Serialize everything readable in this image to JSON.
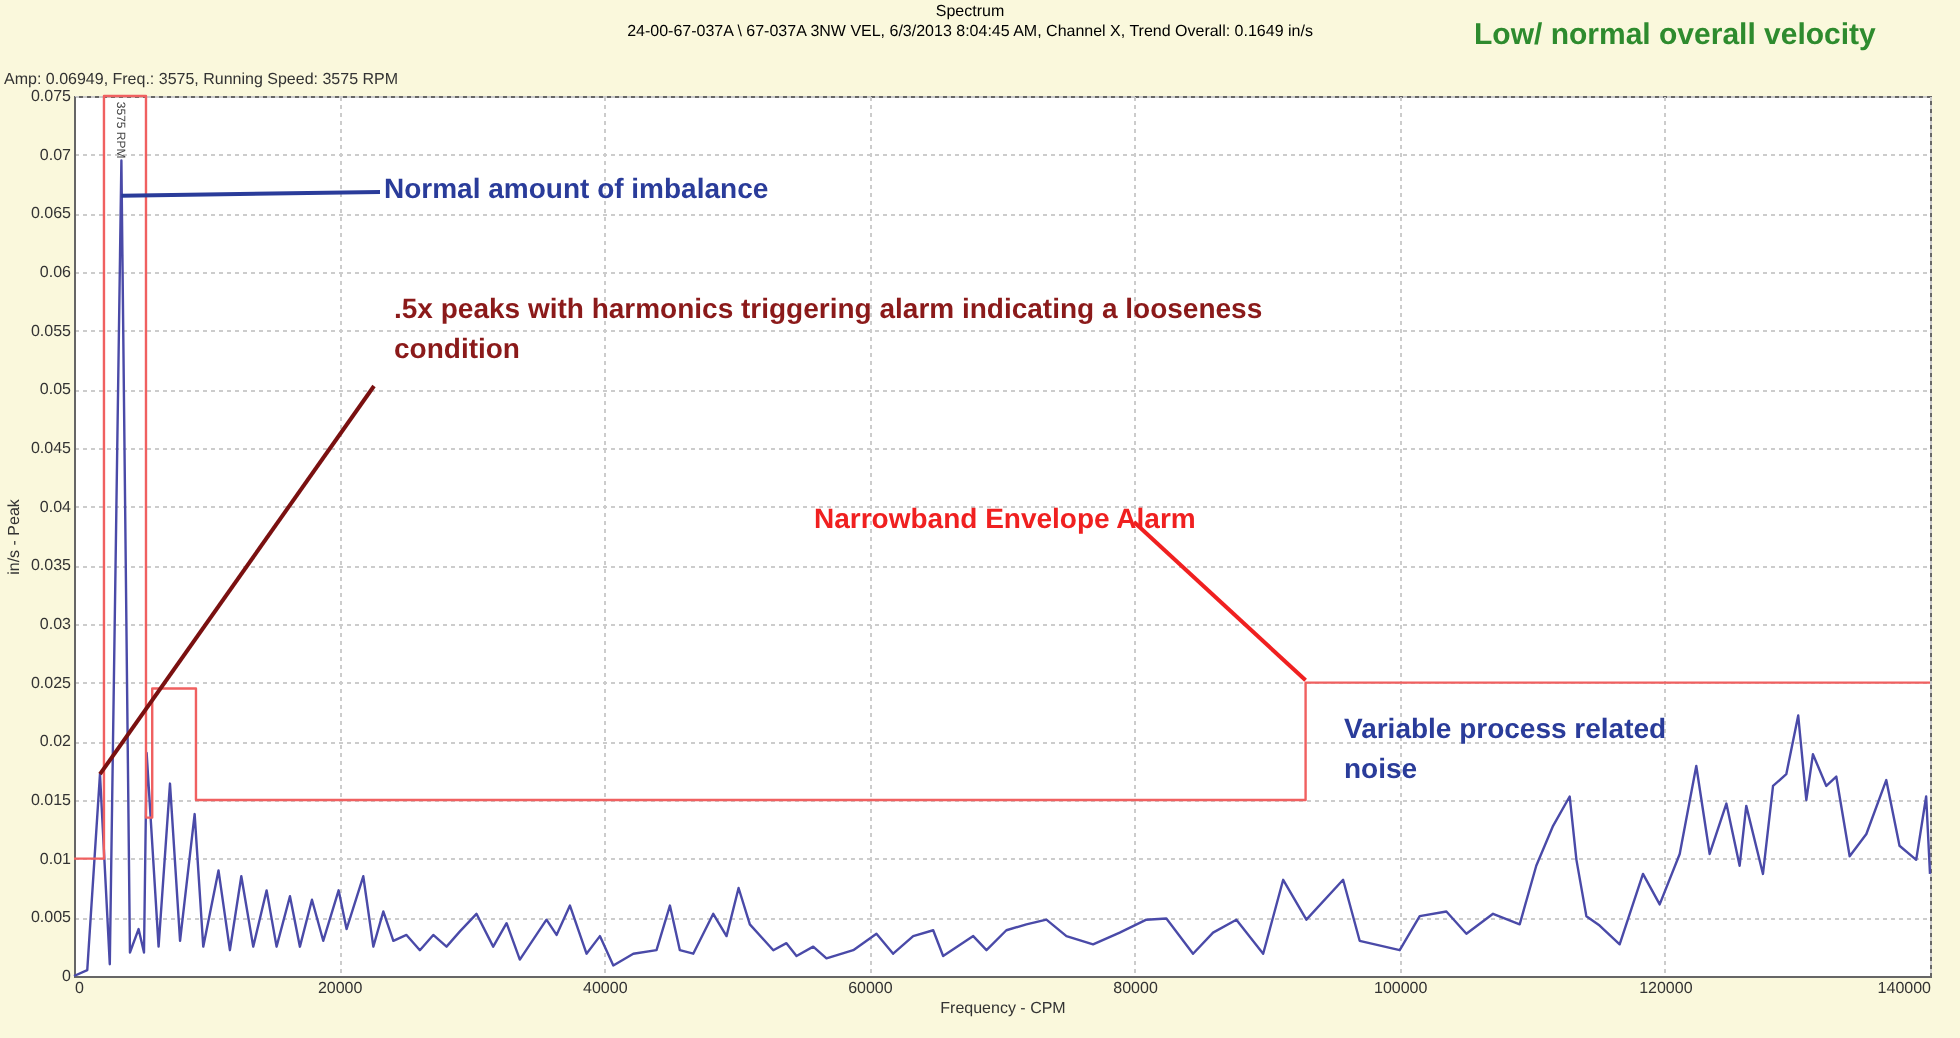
{
  "chart_data": {
    "type": "line",
    "title": "Spectrum",
    "subtitle": "24-00-67-037A \\ 67-037A  3NW VEL, 6/3/2013 8:04:45 AM, Channel X, Trend Overall: 0.1649 in/s",
    "xlabel": "Frequency - CPM",
    "ylabel": "in/s - Peak",
    "xlim": [
      0,
      140000
    ],
    "xticks": [
      0,
      20000,
      40000,
      60000,
      80000,
      100000,
      120000,
      140000
    ],
    "ylim": [
      0,
      0.075
    ],
    "yticks": [
      0,
      0.005,
      0.01,
      0.015,
      0.02,
      0.025,
      0.03,
      0.035,
      0.04,
      0.045,
      0.05,
      0.055,
      0.06,
      0.065,
      0.07,
      0.075
    ],
    "grid": true,
    "line_style": "solid",
    "marker": "none",
    "series": [
      {
        "color": "#4a4aa8",
        "x": [
          0,
          1000,
          1960,
          2700,
          3575,
          4220,
          4870,
          5280,
          5480,
          6380,
          7240,
          8000,
          9100,
          9750,
          10900,
          11760,
          12620,
          13520,
          14530,
          15280,
          16290,
          17040,
          17950,
          18800,
          19960,
          20560,
          21820,
          22580,
          23330,
          24090,
          25080,
          26090,
          27100,
          28100,
          29110,
          30360,
          31620,
          32630,
          33630,
          35640,
          36400,
          37410,
          38660,
          39670,
          40680,
          42190,
          43940,
          44950,
          45700,
          46710,
          48220,
          49220,
          50130,
          50980,
          52750,
          53740,
          54500,
          55760,
          56760,
          58780,
          60530,
          61790,
          63300,
          64810,
          65560,
          67830,
          68830,
          70330,
          71840,
          73350,
          74860,
          76870,
          78880,
          80890,
          82400,
          84410,
          85920,
          87680,
          89700,
          91210,
          92960,
          95730,
          96980,
          100000,
          101510,
          103520,
          105030,
          107040,
          109050,
          110300,
          111570,
          112820,
          113330,
          114080,
          115080,
          116590,
          118350,
          119610,
          121120,
          122370,
          123380,
          124640,
          125640,
          126140,
          127400,
          128160,
          129160,
          130060,
          130670,
          131170,
          132180,
          132930,
          133940,
          135200,
          136700,
          137700,
          138960,
          139710,
          140000
        ],
        "values": [
          0,
          0.0005,
          0.0172,
          0.001,
          0.0695,
          0.002,
          0.004,
          0.002,
          0.019,
          0.0025,
          0.0164,
          0.003,
          0.0138,
          0.0025,
          0.009,
          0.0022,
          0.0085,
          0.0025,
          0.0073,
          0.0025,
          0.0068,
          0.0025,
          0.0065,
          0.003,
          0.0073,
          0.004,
          0.0085,
          0.0025,
          0.0055,
          0.003,
          0.0035,
          0.0022,
          0.0035,
          0.0025,
          0.0038,
          0.0053,
          0.0025,
          0.0045,
          0.0014,
          0.0048,
          0.0035,
          0.006,
          0.0019,
          0.0034,
          0.0009,
          0.0019,
          0.0022,
          0.006,
          0.0022,
          0.0019,
          0.0053,
          0.0034,
          0.0075,
          0.0044,
          0.0022,
          0.0028,
          0.0017,
          0.0025,
          0.0015,
          0.0022,
          0.0036,
          0.0019,
          0.0034,
          0.0039,
          0.0017,
          0.0034,
          0.0022,
          0.0039,
          0.0044,
          0.0048,
          0.0034,
          0.0027,
          0.0037,
          0.0048,
          0.0049,
          0.0019,
          0.0037,
          0.0048,
          0.0019,
          0.0082,
          0.0048,
          0.0082,
          0.003,
          0.0022,
          0.0051,
          0.0055,
          0.0036,
          0.0053,
          0.0044,
          0.0094,
          0.0128,
          0.0153,
          0.0099,
          0.0051,
          0.0043,
          0.0027,
          0.0087,
          0.0061,
          0.0104,
          0.0179,
          0.0104,
          0.0147,
          0.0094,
          0.0145,
          0.0087,
          0.0162,
          0.0172,
          0.0222,
          0.015,
          0.0189,
          0.0162,
          0.017,
          0.0102,
          0.0121,
          0.0167,
          0.0111,
          0.0099,
          0.0153,
          0.0087
        ]
      },
      {
        "color": "#f06060",
        "x": [
          0,
          2260,
          2260,
          5430,
          5430,
          5900,
          5900,
          9200,
          9200,
          92900,
          92900,
          140000
        ],
        "values": [
          0.01,
          0.01,
          0.075,
          0.075,
          0.0135,
          0.0135,
          0.0245,
          0.0245,
          0.015,
          0.015,
          0.025,
          0.025
        ]
      }
    ],
    "annotations": [
      "Amp: 0.06949, Freq.: 3575, Running Speed: 3575 RPM",
      "Low/ normal overall velocity",
      {
        "text": "3575 RPM",
        "x": 3575,
        "y": 0.0695
      },
      {
        "text": "Normal amount of imbalance",
        "x": 3575,
        "y": 0.0665
      },
      {
        "text": ".5x peaks with harmonics triggering alarm indicating a looseness condition",
        "x": 1960,
        "y": 0.0172
      },
      {
        "text": "Narrowband Envelope Alarm",
        "x": 92900,
        "y": 0.0252
      },
      "Variable process related noise"
    ]
  }
}
